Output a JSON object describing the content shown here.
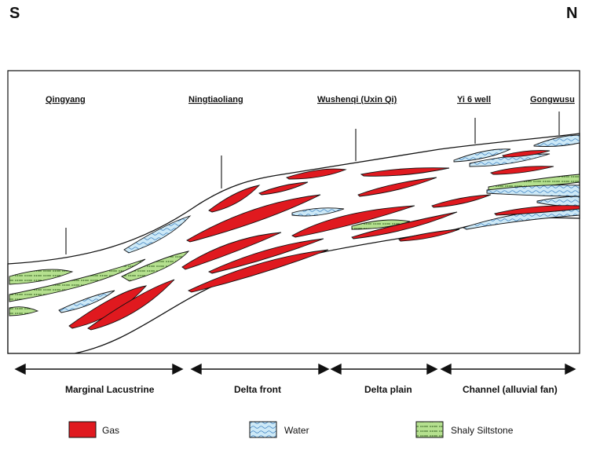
{
  "orientation": {
    "left": "S",
    "right": "N"
  },
  "wells": [
    {
      "id": "qingyang",
      "label": "Qingyang"
    },
    {
      "id": "ningtiaoliang",
      "label": "Ningtiaoliang"
    },
    {
      "id": "wushenqi",
      "label": "Wushenqi (Uxin Qi)"
    },
    {
      "id": "yi6",
      "label": "Yi 6 well"
    },
    {
      "id": "gongwusu",
      "label": "Gongwusu"
    }
  ],
  "zones": [
    {
      "id": "marginal-lacustrine",
      "label": "Marginal Lacustrine"
    },
    {
      "id": "delta-front",
      "label": "Delta front"
    },
    {
      "id": "delta-plain",
      "label": "Delta plain"
    },
    {
      "id": "channel",
      "label": "Channel (alluvial fan)"
    }
  ],
  "legend": [
    {
      "id": "gas",
      "label": "Gas",
      "color": "#e0191f"
    },
    {
      "id": "water",
      "label": "Water",
      "color": "#cde9f7"
    },
    {
      "id": "shaly-siltstone",
      "label": "Shaly Siltstone",
      "color": "#b5e08f"
    }
  ],
  "colors": {
    "gas": "#e0191f",
    "water": "#cde9f7",
    "silt": "#b5e08f",
    "line": "#111111"
  }
}
